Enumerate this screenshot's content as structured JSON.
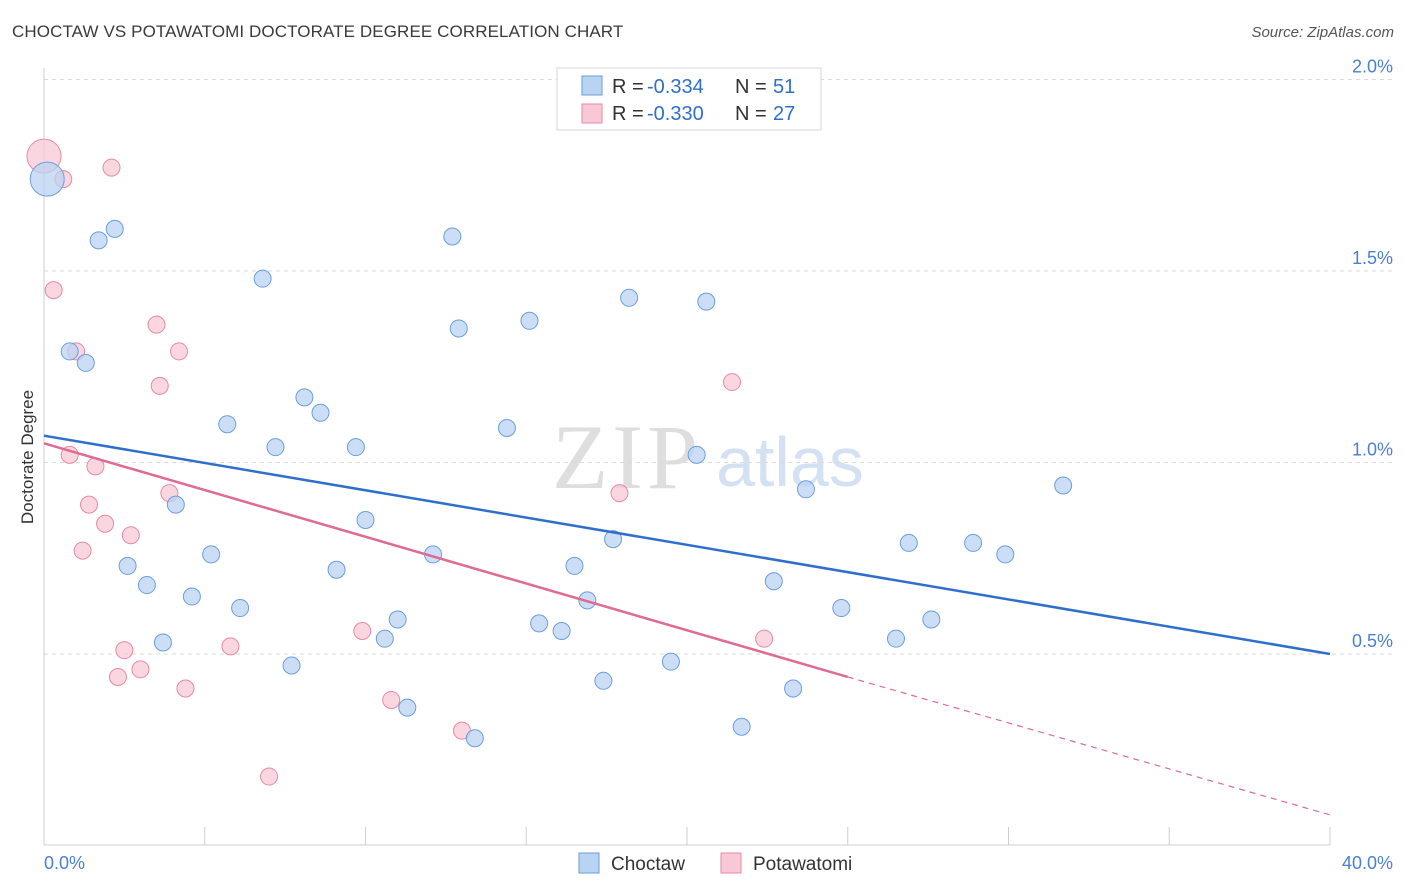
{
  "title": "CHOCTAW VS POTAWATOMI DOCTORATE DEGREE CORRELATION CHART",
  "source": "Source: ZipAtlas.com",
  "watermark": {
    "zip": "ZIP",
    "atlas": "atlas"
  },
  "colors": {
    "choctaw_fill": "#b9d3f3",
    "choctaw_stroke": "#6b9ede",
    "choctaw_line": "#2f6fcb",
    "potawatomi_fill": "#f8c8d6",
    "potawatomi_stroke": "#e68aa6",
    "potawatomi_line": "#df6b93",
    "axis_value": "#4a7fd4"
  },
  "legend_top": {
    "rows": [
      {
        "r_label": "R =",
        "r_value": "-0.334",
        "n_label": "N =",
        "n_value": "51"
      },
      {
        "r_label": "R =",
        "r_value": "-0.330",
        "n_label": "N =",
        "n_value": "27"
      }
    ]
  },
  "chart_data": {
    "type": "scatter",
    "title": "CHOCTAW VS POTAWATOMI DOCTORATE DEGREE CORRELATION CHART",
    "xlabel": "",
    "ylabel": "Doctorate Degree",
    "xlim": [
      0,
      40
    ],
    "ylim": [
      0.0,
      2.05
    ],
    "x_tick_labels": [
      "0.0%",
      "40.0%"
    ],
    "y_ticks": [
      0.5,
      1.0,
      1.5,
      2.0
    ],
    "y_tick_labels": [
      "0.5%",
      "1.0%",
      "1.5%",
      "2.0%"
    ],
    "grid": true,
    "legend": [
      "Choctaw",
      "Potawatomi"
    ],
    "series": [
      {
        "name": "Choctaw",
        "r": -0.334,
        "n": 51,
        "trend": {
          "x": [
            0,
            40
          ],
          "y": [
            1.07,
            0.5
          ]
        },
        "points": [
          {
            "x": 0.1,
            "y": 1.74,
            "big": true
          },
          {
            "x": 1.7,
            "y": 1.58
          },
          {
            "x": 2.2,
            "y": 1.61
          },
          {
            "x": 6.8,
            "y": 1.48
          },
          {
            "x": 12.7,
            "y": 1.59
          },
          {
            "x": 0.8,
            "y": 1.29
          },
          {
            "x": 1.3,
            "y": 1.26
          },
          {
            "x": 12.9,
            "y": 1.35
          },
          {
            "x": 15.1,
            "y": 1.37
          },
          {
            "x": 18.2,
            "y": 1.43
          },
          {
            "x": 20.6,
            "y": 1.42
          },
          {
            "x": 8.1,
            "y": 1.17
          },
          {
            "x": 8.6,
            "y": 1.13
          },
          {
            "x": 5.7,
            "y": 1.1
          },
          {
            "x": 7.2,
            "y": 1.04
          },
          {
            "x": 9.7,
            "y": 1.04
          },
          {
            "x": 14.4,
            "y": 1.09
          },
          {
            "x": 20.3,
            "y": 1.02
          },
          {
            "x": 23.7,
            "y": 0.93
          },
          {
            "x": 31.7,
            "y": 0.94
          },
          {
            "x": 4.1,
            "y": 0.89
          },
          {
            "x": 10.0,
            "y": 0.85
          },
          {
            "x": 17.7,
            "y": 0.8
          },
          {
            "x": 26.9,
            "y": 0.79
          },
          {
            "x": 28.9,
            "y": 0.79
          },
          {
            "x": 29.9,
            "y": 0.76
          },
          {
            "x": 5.2,
            "y": 0.76
          },
          {
            "x": 12.1,
            "y": 0.76
          },
          {
            "x": 2.6,
            "y": 0.73
          },
          {
            "x": 9.1,
            "y": 0.72
          },
          {
            "x": 16.5,
            "y": 0.73
          },
          {
            "x": 3.2,
            "y": 0.68
          },
          {
            "x": 22.7,
            "y": 0.69
          },
          {
            "x": 4.6,
            "y": 0.65
          },
          {
            "x": 16.9,
            "y": 0.64
          },
          {
            "x": 6.1,
            "y": 0.62
          },
          {
            "x": 24.8,
            "y": 0.62
          },
          {
            "x": 27.6,
            "y": 0.59
          },
          {
            "x": 11.0,
            "y": 0.59
          },
          {
            "x": 15.4,
            "y": 0.58
          },
          {
            "x": 16.1,
            "y": 0.56
          },
          {
            "x": 3.7,
            "y": 0.53
          },
          {
            "x": 10.6,
            "y": 0.54
          },
          {
            "x": 26.5,
            "y": 0.54
          },
          {
            "x": 7.7,
            "y": 0.47
          },
          {
            "x": 19.5,
            "y": 0.48
          },
          {
            "x": 17.4,
            "y": 0.43
          },
          {
            "x": 23.3,
            "y": 0.41
          },
          {
            "x": 11.3,
            "y": 0.36
          },
          {
            "x": 21.7,
            "y": 0.31
          },
          {
            "x": 13.4,
            "y": 0.28
          }
        ]
      },
      {
        "name": "Potawatomi",
        "r": -0.33,
        "n": 27,
        "trend": {
          "x": [
            0,
            25
          ],
          "y": [
            1.05,
            0.44
          ]
        },
        "trend_extension": {
          "x": [
            25,
            40
          ],
          "y": [
            0.44,
            0.08
          ]
        },
        "points": [
          {
            "x": 0.0,
            "y": 1.8,
            "big": true
          },
          {
            "x": 2.1,
            "y": 1.77
          },
          {
            "x": 0.6,
            "y": 1.74
          },
          {
            "x": 0.3,
            "y": 1.45
          },
          {
            "x": 3.5,
            "y": 1.36
          },
          {
            "x": 1.0,
            "y": 1.29
          },
          {
            "x": 4.2,
            "y": 1.29
          },
          {
            "x": 3.6,
            "y": 1.2
          },
          {
            "x": 21.4,
            "y": 1.21
          },
          {
            "x": 0.8,
            "y": 1.02
          },
          {
            "x": 1.6,
            "y": 0.99
          },
          {
            "x": 3.9,
            "y": 0.92
          },
          {
            "x": 17.9,
            "y": 0.92
          },
          {
            "x": 1.4,
            "y": 0.89
          },
          {
            "x": 1.9,
            "y": 0.84
          },
          {
            "x": 2.7,
            "y": 0.81
          },
          {
            "x": 1.2,
            "y": 0.77
          },
          {
            "x": 2.5,
            "y": 0.51
          },
          {
            "x": 5.8,
            "y": 0.52
          },
          {
            "x": 9.9,
            "y": 0.56
          },
          {
            "x": 22.4,
            "y": 0.54
          },
          {
            "x": 3.0,
            "y": 0.46
          },
          {
            "x": 2.3,
            "y": 0.44
          },
          {
            "x": 4.4,
            "y": 0.41
          },
          {
            "x": 10.8,
            "y": 0.38
          },
          {
            "x": 13.0,
            "y": 0.3
          },
          {
            "x": 7.0,
            "y": 0.18
          }
        ]
      }
    ]
  }
}
